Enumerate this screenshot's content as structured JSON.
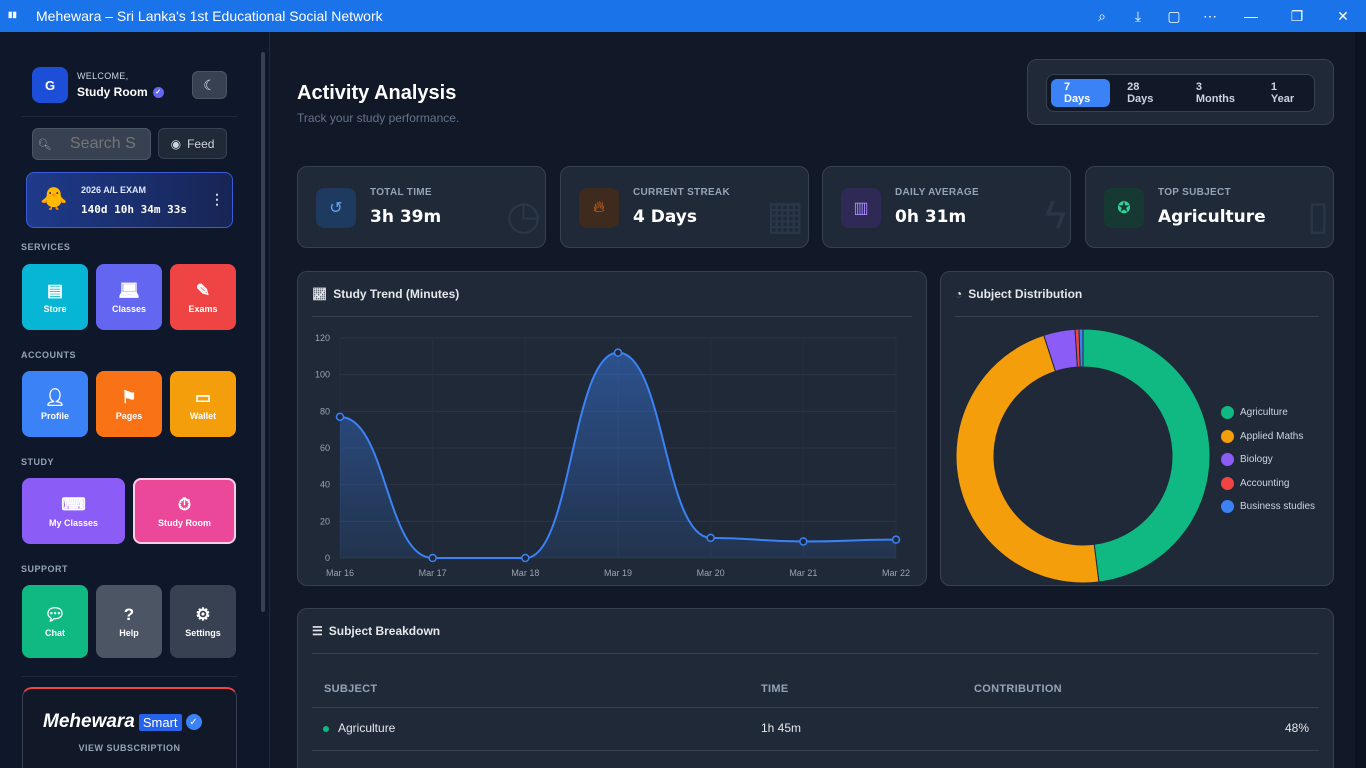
{
  "window": {
    "title": "Mehewara – Sri Lanka's 1st Educational Social Network"
  },
  "sidebar": {
    "welcome_label": "WELCOME,",
    "user_name": "Study Room",
    "logo_text": "G",
    "search_placeholder": "Search S",
    "feed_label": "Feed",
    "exam": {
      "title": "2026 A/L EXAM",
      "countdown": "140d 10h 34m 33s"
    },
    "sections": {
      "services": "SERVICES",
      "accounts": "ACCOUNTS",
      "study": "STUDY",
      "support": "SUPPORT"
    },
    "tiles": {
      "store": "Store",
      "classes": "Classes",
      "exams": "Exams",
      "profile": "Profile",
      "pages": "Pages",
      "wallet": "Wallet",
      "my_classes": "My Classes",
      "study_room": "Study Room",
      "chat": "Chat",
      "help": "Help",
      "settings": "Settings"
    },
    "brand": {
      "name": "Mehewara",
      "badge": "Smart",
      "subscription_link": "VIEW SUBSCRIPTION"
    }
  },
  "main": {
    "title": "Activity Analysis",
    "subtitle": "Track your study performance.",
    "ranges": [
      "7 Days",
      "28 Days",
      "3 Months",
      "1 Year"
    ],
    "active_range": "7 Days",
    "stats": [
      {
        "label": "TOTAL TIME",
        "value": "3h 39m",
        "icon": "history-icon"
      },
      {
        "label": "CURRENT STREAK",
        "value": "4 Days",
        "icon": "fire-icon"
      },
      {
        "label": "DAILY AVERAGE",
        "value": "0h 31m",
        "icon": "bar-chart-icon"
      },
      {
        "label": "TOP SUBJECT",
        "value": "Agriculture",
        "icon": "award-icon"
      }
    ],
    "trend_title": "Study Trend (Minutes)",
    "distribution_title": "Subject Distribution",
    "breakdown": {
      "title": "Subject Breakdown",
      "headers": {
        "subject": "SUBJECT",
        "time": "TIME",
        "contribution": "CONTRIBUTION"
      },
      "rows": [
        {
          "subject": "Agriculture",
          "time": "1h 45m",
          "contribution": "48%",
          "color": "#10b981"
        }
      ]
    }
  },
  "chart_data": [
    {
      "type": "line",
      "title": "Study Trend (Minutes)",
      "categories": [
        "Mar 16",
        "Mar 17",
        "Mar 18",
        "Mar 19",
        "Mar 20",
        "Mar 21",
        "Mar 22"
      ],
      "values": [
        77,
        0,
        0,
        112,
        11,
        9,
        10
      ],
      "ylim": [
        0,
        120
      ],
      "yticks": [
        0,
        20,
        40,
        60,
        80,
        100,
        120
      ],
      "color": "#3b82f6",
      "grid": true
    },
    {
      "type": "pie",
      "title": "Subject Distribution",
      "labels": [
        "Agriculture",
        "Applied Maths",
        "Biology",
        "Accounting",
        "Business studies"
      ],
      "values": [
        48,
        47,
        4,
        0.5,
        0.5
      ],
      "colors": [
        "#10b981",
        "#f59e0b",
        "#8b5cf6",
        "#ef4444",
        "#3b82f6"
      ],
      "legend": "right"
    }
  ]
}
